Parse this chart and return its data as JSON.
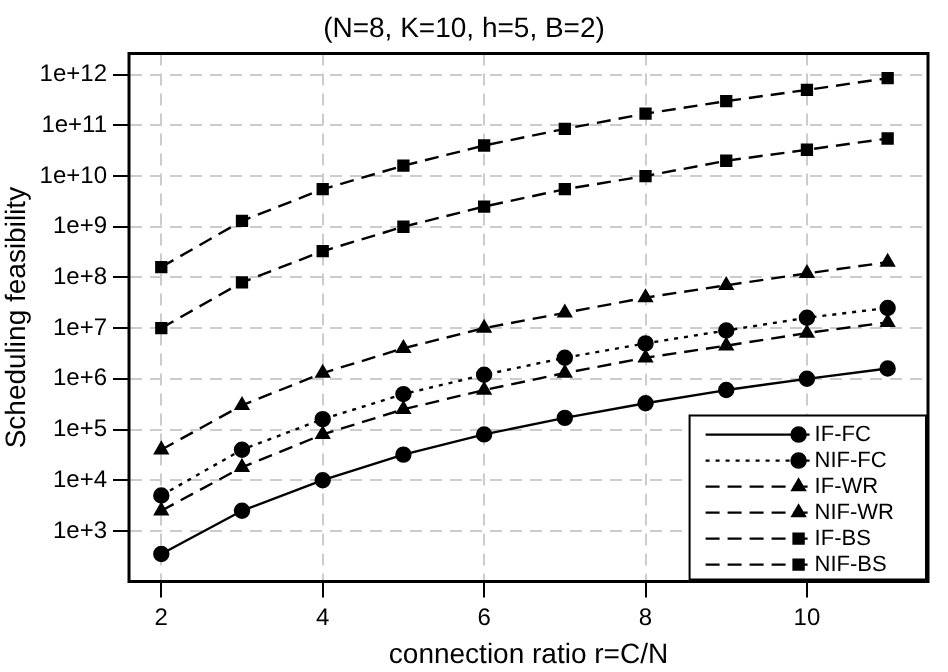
{
  "chart_data": {
    "type": "line",
    "title": "(N=8, K=10, h=5, B=2)",
    "xlabel": "connection ratio r=C/N",
    "ylabel": "Scheduling feasibility",
    "x": [
      2,
      3,
      4,
      5,
      6,
      7,
      8,
      9,
      10,
      11
    ],
    "xlim": [
      1.6,
      11.5
    ],
    "xticks": [
      2,
      4,
      6,
      8,
      10
    ],
    "log": "y",
    "ylim": [
      100,
      2600000000000.0
    ],
    "yticks": [
      {
        "value": 1000,
        "label": "1e+3"
      },
      {
        "value": 10000,
        "label": "1e+4"
      },
      {
        "value": 100000,
        "label": "1e+5"
      },
      {
        "value": 1000000,
        "label": "1e+6"
      },
      {
        "value": 10000000,
        "label": "1e+7"
      },
      {
        "value": 100000000,
        "label": "1e+8"
      },
      {
        "value": 1000000000,
        "label": "1e+9"
      },
      {
        "value": 10000000000,
        "label": "1e+10"
      },
      {
        "value": 100000000000,
        "label": "1e+11"
      },
      {
        "value": 1000000000000,
        "label": "1e+12"
      }
    ],
    "grid": true,
    "legend": "bottom right",
    "series": [
      {
        "name": "IF-FC",
        "color": "#000000",
        "marker": "circle",
        "line_style": "solid",
        "values": [
          350,
          2500,
          10000,
          32000,
          80000,
          170000,
          330000,
          600000,
          1000000,
          1600000
        ]
      },
      {
        "name": "NIF-FC",
        "color": "#000000",
        "marker": "circle",
        "line_style": "dotted",
        "values": [
          5000,
          40000,
          160000,
          500000,
          1200000,
          2600000,
          5000000,
          9000000,
          16000000,
          25000000
        ]
      },
      {
        "name": "IF-WR",
        "color": "#000000",
        "marker": "triangle",
        "line_style": "dashed",
        "values": [
          2500,
          18000,
          80000,
          250000,
          600000,
          1300000,
          2600000,
          4500000,
          8000000,
          13000000
        ]
      },
      {
        "name": "NIF-WR",
        "color": "#000000",
        "marker": "triangle",
        "line_style": "dashed",
        "values": [
          40000,
          300000,
          1300000,
          4000000,
          10000000,
          20000000,
          40000000,
          70000000,
          120000000,
          200000000
        ]
      },
      {
        "name": "IF-BS",
        "color": "#000000",
        "marker": "square",
        "line_style": "dashed",
        "values": [
          10000000,
          80000000,
          330000000,
          1000000000,
          2500000000,
          5500000000,
          10000000000,
          20000000000,
          33000000000,
          55000000000
        ]
      },
      {
        "name": "NIF-BS",
        "color": "#000000",
        "marker": "square",
        "line_style": "dashed",
        "values": [
          160000000,
          1300000000,
          5500000000,
          16000000000,
          40000000000,
          85000000000,
          170000000000,
          300000000000,
          500000000000,
          850000000000
        ]
      }
    ]
  }
}
